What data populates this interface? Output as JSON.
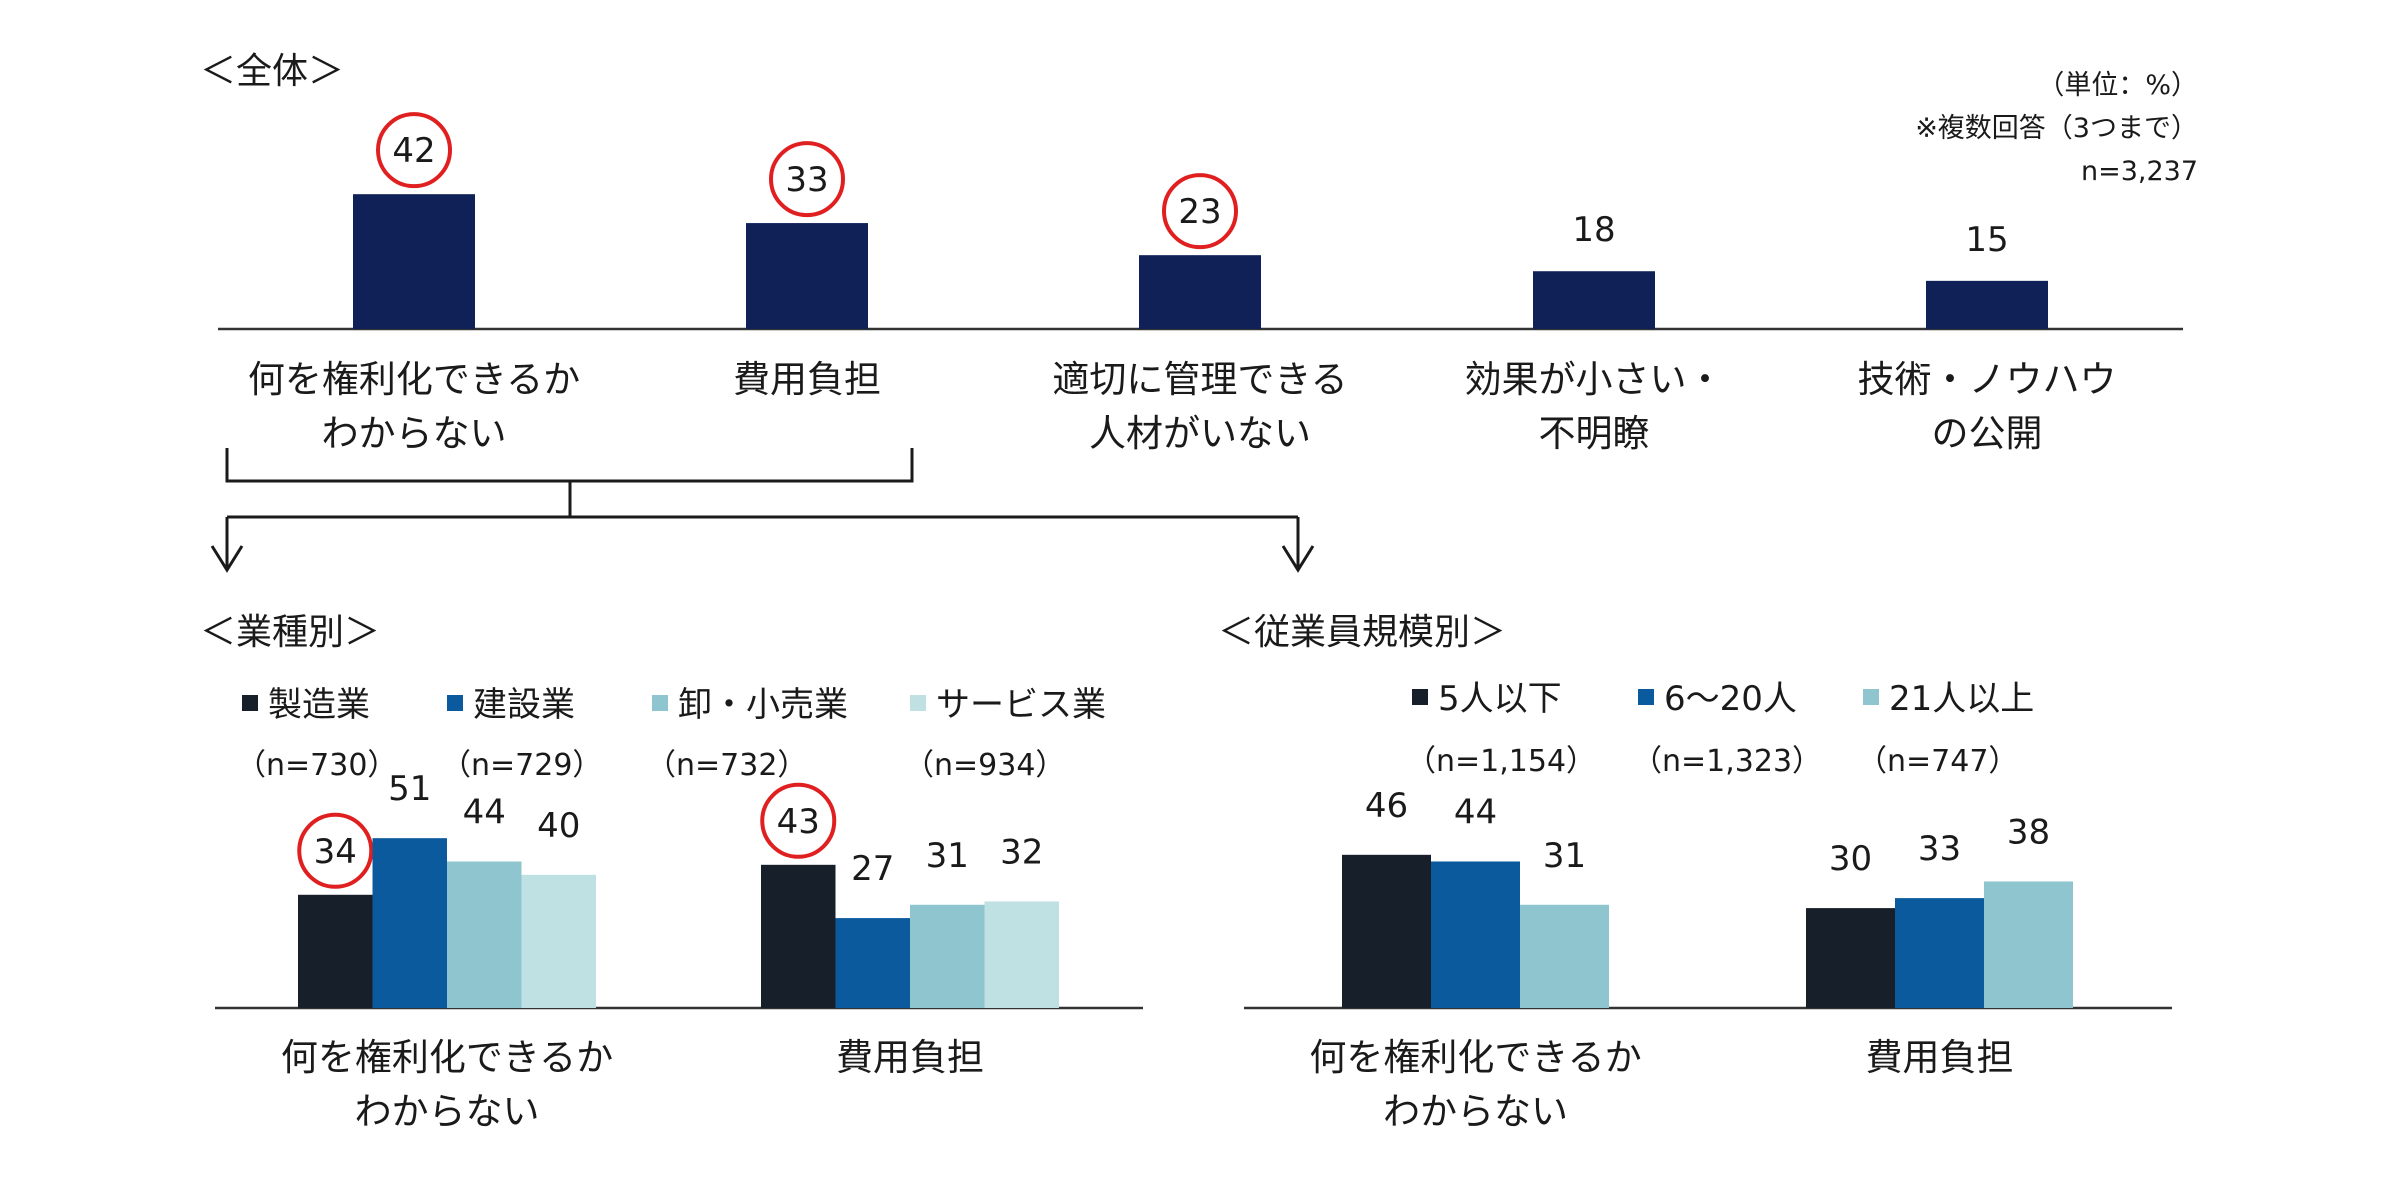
{
  "chart_data": [
    {
      "type": "bar",
      "section_title": "＜全体＞",
      "notes": [
        "（単位：%）",
        "※複数回答（3つまで）",
        "n=3,237"
      ],
      "categories": [
        [
          "何を権利化できるか",
          "わからない"
        ],
        [
          "費用負担"
        ],
        [
          "適切に管理できる",
          "人材がいない"
        ],
        [
          "効果が小さい・",
          "不明瞭"
        ],
        [
          "技術・ノウハウ",
          "の公開"
        ]
      ],
      "series": [
        {
          "values": [
            42,
            33,
            23,
            18,
            15
          ]
        }
      ],
      "highlighted": [
        0,
        1,
        2
      ],
      "colors": [
        "#0f2157"
      ]
    },
    {
      "type": "bar",
      "section_title": "＜業種別＞",
      "categories": [
        [
          "何を権利化できるか",
          "わからない"
        ],
        [
          "費用負担"
        ]
      ],
      "series": [
        {
          "name": "製造業",
          "n": "（n=730）",
          "color": "#17202a",
          "values": [
            34,
            43
          ]
        },
        {
          "name": "建設業",
          "n": "（n=729）",
          "color": "#0c5a9e",
          "values": [
            51,
            27
          ]
        },
        {
          "name": "卸・小売業",
          "n": "（n=732）",
          "color": "#8ec5cf",
          "values": [
            44,
            31
          ]
        },
        {
          "name": "サービス業",
          "n": "（n=934）",
          "color": "#bfe1e4",
          "values": [
            40,
            32
          ]
        }
      ],
      "highlighted": [
        [
          0,
          0
        ],
        [
          0,
          1
        ]
      ]
    },
    {
      "type": "bar",
      "section_title": "＜従業員規模別＞",
      "categories": [
        [
          "何を権利化できるか",
          "わからない"
        ],
        [
          "費用負担"
        ]
      ],
      "series": [
        {
          "name": "5人以下",
          "n": "（n=1,154）",
          "color": "#17202a",
          "values": [
            46,
            30
          ]
        },
        {
          "name": "6～20人",
          "n": "（n=1,323）",
          "color": "#0c5a9e",
          "values": [
            44,
            33
          ]
        },
        {
          "name": "21人以上",
          "n": "（n=747）",
          "color": "#8ec5cf",
          "values": [
            31,
            38
          ]
        }
      ]
    }
  ],
  "colors": {
    "highlight_circle": "#e02020"
  }
}
